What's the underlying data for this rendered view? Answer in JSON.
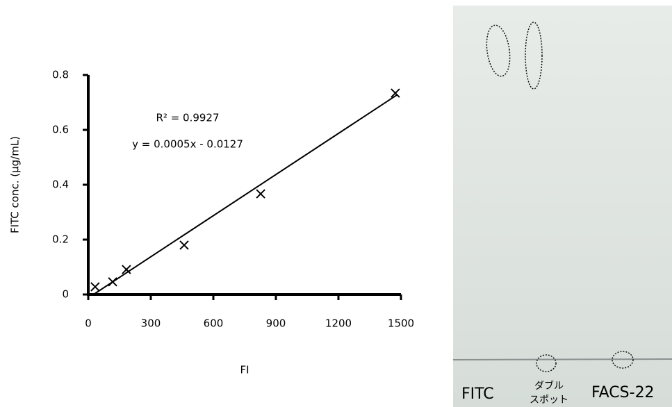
{
  "chart_data": {
    "type": "scatter",
    "x_label": "FI",
    "y_label": "FITC conc. (μg/mL)",
    "annotations": [
      "R² = 0.9927",
      "y = 0.0005x - 0.0127"
    ],
    "x": [
      33,
      117,
      183,
      460,
      827,
      1473
    ],
    "values": [
      0.028,
      0.046,
      0.091,
      0.18,
      0.367,
      0.734
    ],
    "color": "#000000",
    "trendline": {
      "x": [
        25,
        1480
      ],
      "values": [
        0,
        0.727
      ]
    },
    "xlim": [
      0,
      1500
    ],
    "ylim": [
      0,
      0.8
    ],
    "xticks": [
      0,
      300,
      600,
      900,
      1200,
      1500
    ],
    "yticks": [
      0,
      0.2,
      0.4,
      0.6,
      0.8
    ],
    "grid": false
  },
  "image": {
    "lane_labels": [
      "FITC",
      "ダブル",
      "スポット",
      "FACS-22"
    ]
  }
}
